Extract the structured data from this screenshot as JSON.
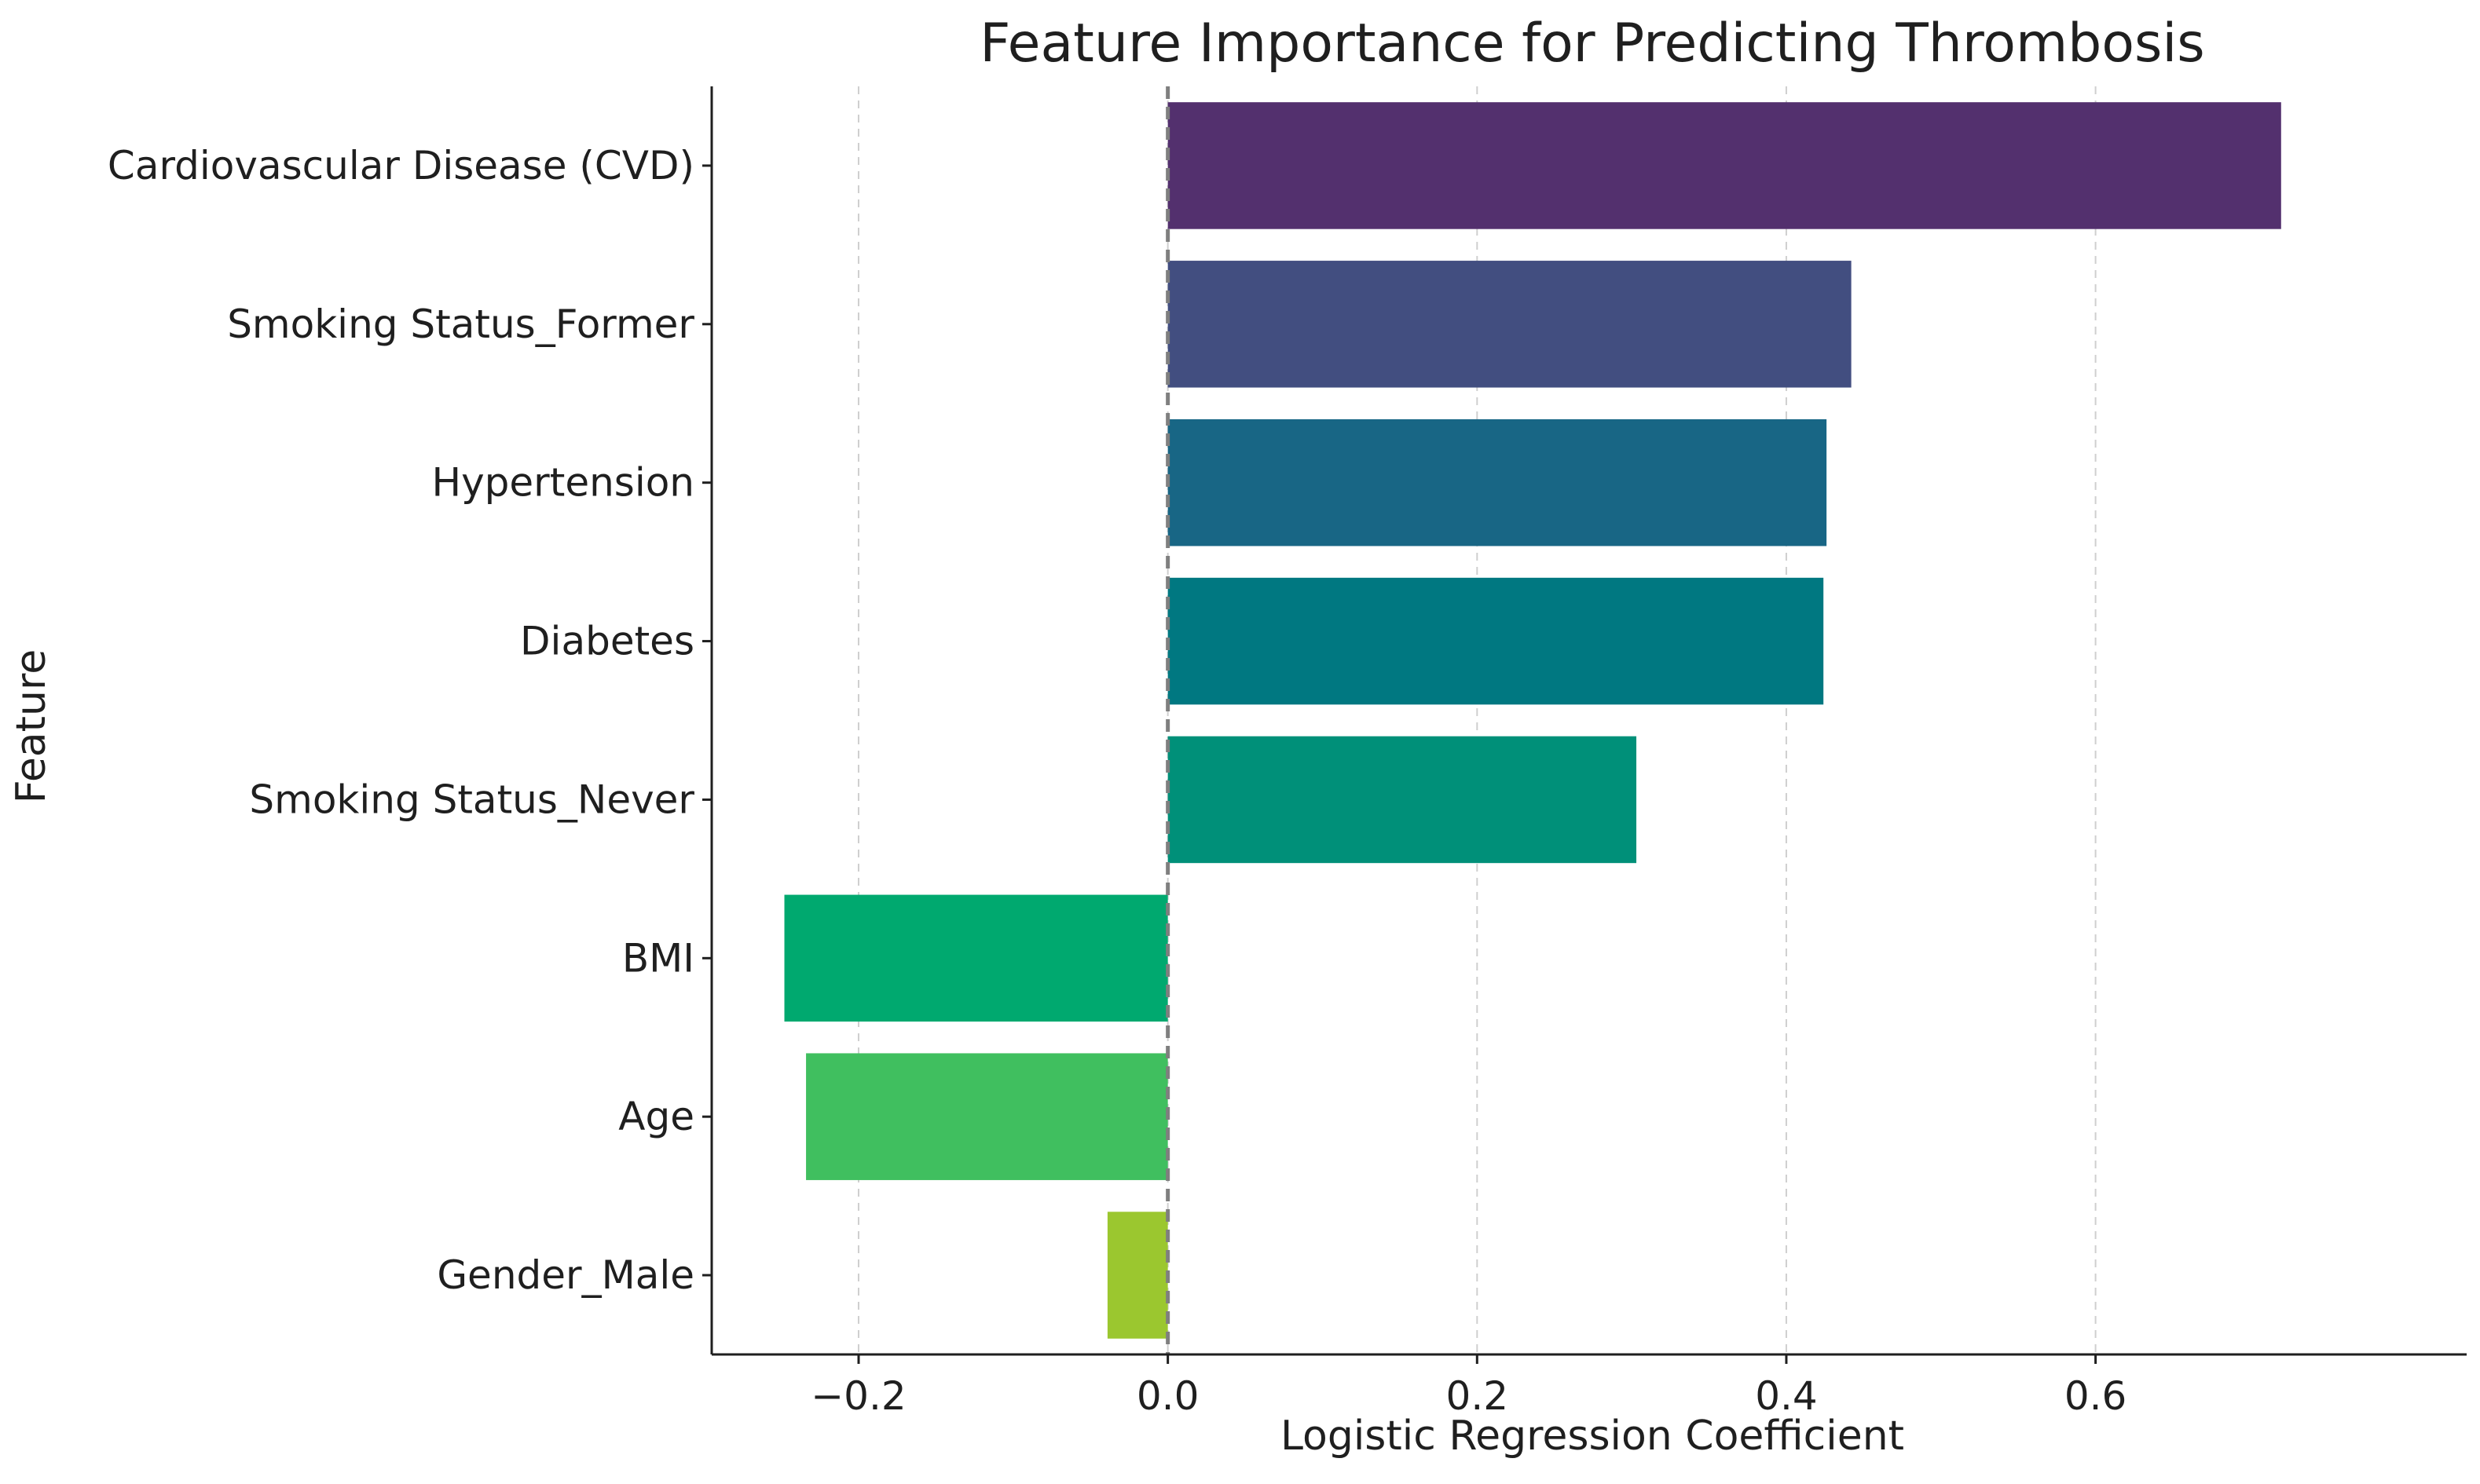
{
  "chart_data": {
    "type": "bar",
    "orientation": "horizontal",
    "title": "Feature Importance for Predicting Thrombosis",
    "xlabel": "Logistic Regression Coefficient",
    "ylabel": "Feature",
    "xlim": [
      -0.295,
      0.84
    ],
    "xticks": [
      -0.2,
      0.0,
      0.2,
      0.4,
      0.6
    ],
    "xtick_labels": [
      "−0.2",
      "0.0",
      "0.2",
      "0.4",
      "0.6"
    ],
    "grid": "vertical dashed",
    "reference_line": 0.0,
    "categories": [
      "Cardiovascular Disease (CVD)",
      "Smoking Status_Former",
      "Hypertension",
      "Diabetes",
      "Smoking Status_Never",
      "BMI",
      "Age",
      "Gender_Male"
    ],
    "values": [
      0.72,
      0.442,
      0.426,
      0.424,
      0.303,
      -0.248,
      -0.234,
      -0.039
    ],
    "colors": [
      "#53306e",
      "#424e80",
      "#186685",
      "#007881",
      "#009079",
      "#00a96f",
      "#40bf5f",
      "#9bc72f"
    ]
  }
}
